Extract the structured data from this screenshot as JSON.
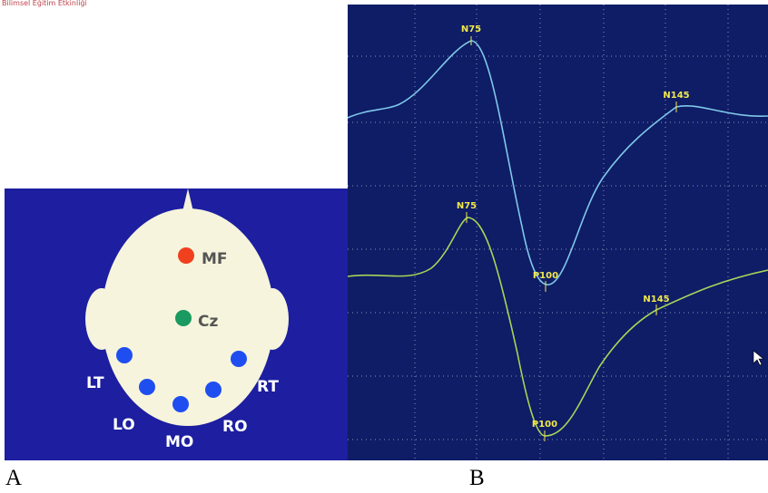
{
  "header": {
    "text": "Bilimsel Eğitim Etkinliği"
  },
  "panel_a": {
    "label": "A",
    "electrodes": [
      "MF",
      "Cz",
      "LT",
      "RT",
      "LO",
      "MO",
      "RO"
    ]
  },
  "panel_b": {
    "label": "B",
    "upper_trace": {
      "peaks": [
        "N75",
        "P100",
        "N145"
      ]
    },
    "lower_trace": {
      "peaks": [
        "N75",
        "P100",
        "N145"
      ]
    }
  }
}
